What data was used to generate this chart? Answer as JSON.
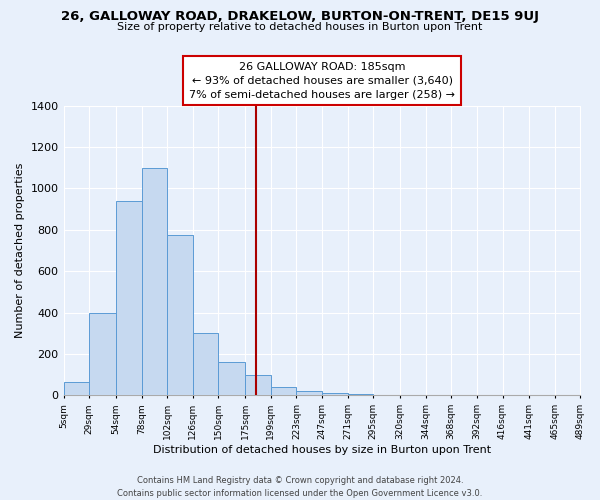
{
  "title_line1": "26, GALLOWAY ROAD, DRAKELOW, BURTON-ON-TRENT, DE15 9UJ",
  "title_line2": "Size of property relative to detached houses in Burton upon Trent",
  "xlabel": "Distribution of detached houses by size in Burton upon Trent",
  "ylabel": "Number of detached properties",
  "footer_line1": "Contains HM Land Registry data © Crown copyright and database right 2024.",
  "footer_line2": "Contains public sector information licensed under the Open Government Licence v3.0.",
  "bin_edges": [
    5,
    29,
    54,
    78,
    102,
    126,
    150,
    175,
    199,
    223,
    247,
    271,
    295,
    320,
    344,
    368,
    392,
    416,
    441,
    465,
    489
  ],
  "bin_labels": [
    "5sqm",
    "29sqm",
    "54sqm",
    "78sqm",
    "102sqm",
    "126sqm",
    "150sqm",
    "175sqm",
    "199sqm",
    "223sqm",
    "247sqm",
    "271sqm",
    "295sqm",
    "320sqm",
    "344sqm",
    "368sqm",
    "392sqm",
    "416sqm",
    "441sqm",
    "465sqm",
    "489sqm"
  ],
  "bar_heights": [
    65,
    400,
    940,
    1100,
    775,
    300,
    160,
    100,
    40,
    20,
    10,
    5,
    3,
    0,
    0,
    0,
    0,
    0,
    0,
    0
  ],
  "bar_color": "#c6d9f0",
  "bar_edge_color": "#5b9bd5",
  "vline_x": 185,
  "vline_color": "#aa0000",
  "annotation_title": "26 GALLOWAY ROAD: 185sqm",
  "annotation_line1": "← 93% of detached houses are smaller (3,640)",
  "annotation_line2": "7% of semi-detached houses are larger (258) →",
  "annotation_box_color": "#ffffff",
  "annotation_box_edge": "#cc0000",
  "ylim": [
    0,
    1400
  ],
  "yticks": [
    0,
    200,
    400,
    600,
    800,
    1000,
    1200,
    1400
  ],
  "bg_color": "#e8f0fb",
  "grid_color": "#ffffff"
}
